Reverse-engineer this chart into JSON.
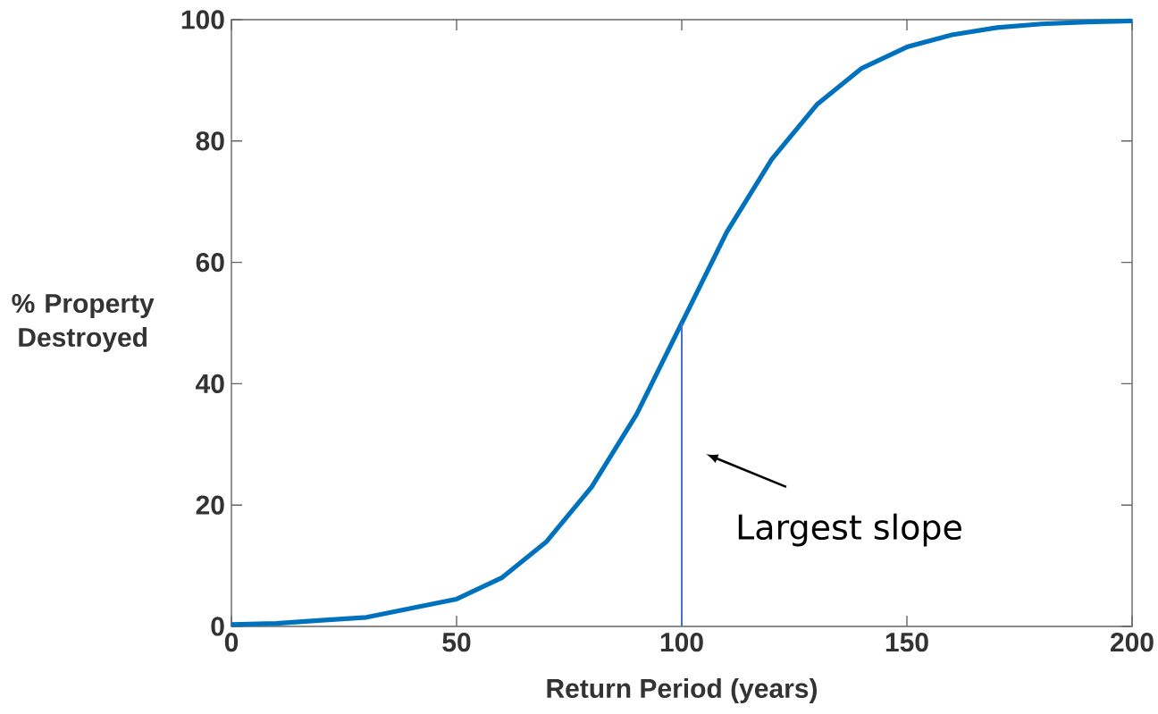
{
  "chart_data": {
    "type": "line",
    "xlabel": "Return Period (years)",
    "ylabel": "% Property Destroyed",
    "xlim": [
      0,
      200
    ],
    "ylim": [
      0,
      100
    ],
    "xticks": [
      0,
      50,
      100,
      150,
      200
    ],
    "yticks": [
      0,
      20,
      40,
      60,
      80,
      100
    ],
    "grid": false,
    "marker": "none",
    "line_style": "solid",
    "series": [
      {
        "color": "#0072bd",
        "x": [
          0,
          10,
          20,
          30,
          40,
          50,
          60,
          70,
          80,
          90,
          100,
          110,
          120,
          130,
          140,
          150,
          160,
          170,
          180,
          190,
          200
        ],
        "values": [
          0.3,
          0.5,
          1,
          1.5,
          3,
          4.5,
          8,
          14,
          23,
          35,
          50,
          65,
          77,
          86,
          92,
          95.5,
          97.5,
          98.7,
          99.3,
          99.6,
          99.8
        ]
      },
      {
        "color": "#4472c4",
        "type": "line",
        "x": [
          100,
          100
        ],
        "values": [
          0,
          50
        ]
      }
    ],
    "annotations": [
      "Largest slope"
    ]
  }
}
